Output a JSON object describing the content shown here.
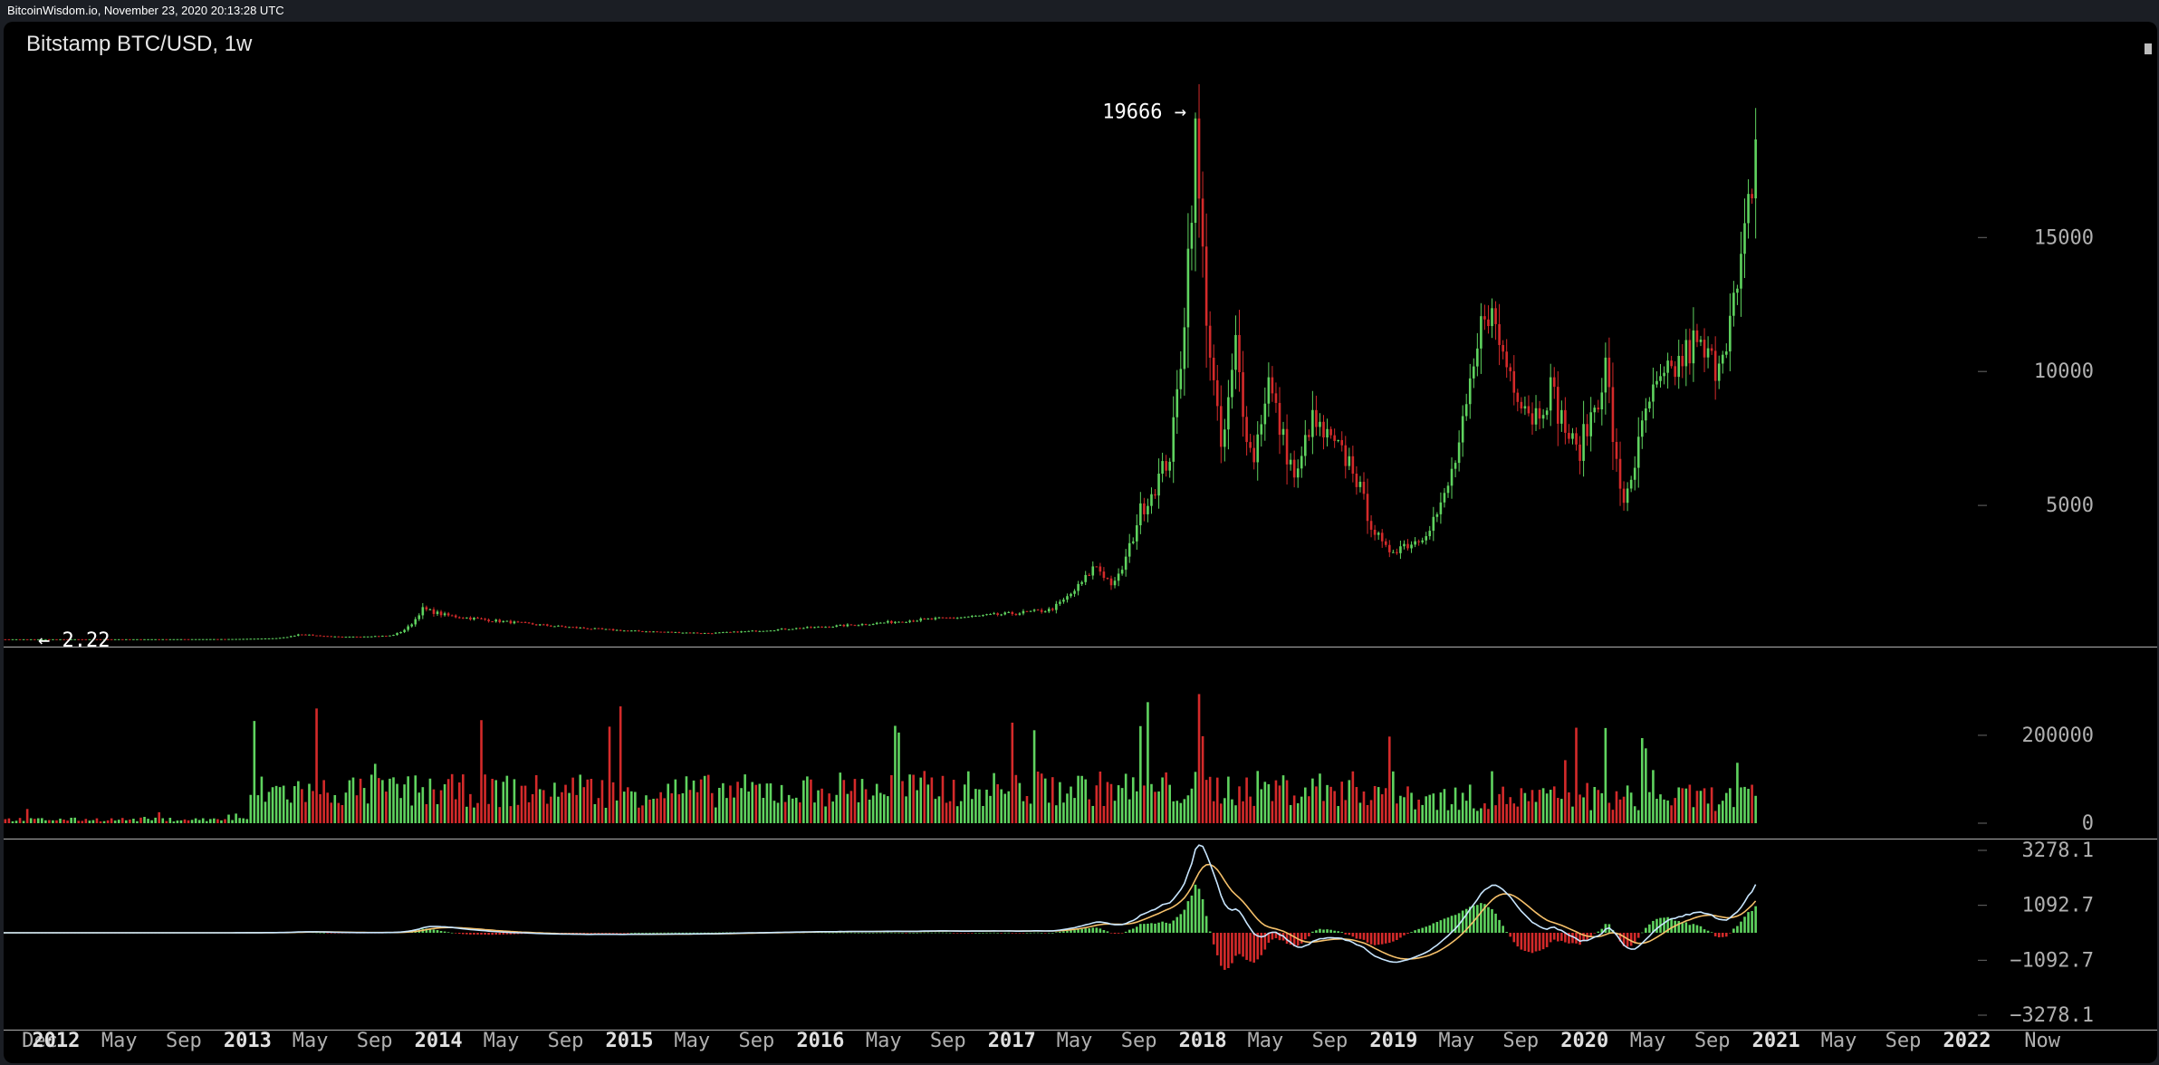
{
  "page": {
    "timestamp_line": "BitcoinWisdom.io, November 23, 2020 20:13:28 UTC"
  },
  "header": {
    "title": "Bitstamp BTC/USD, 1w"
  },
  "colors": {
    "up": "#5fd35f",
    "down": "#d42a2a",
    "macd_line": "#c8e6ff",
    "signal_line": "#f5c06a",
    "axis_text": "#b0b0b0",
    "divider": "#9a9a9a"
  },
  "chart_data": [
    {
      "type": "candlestick",
      "name": "price",
      "ylim": [
        0,
        21500
      ],
      "yticks": [
        "5000",
        "10000",
        "15000"
      ],
      "annotations": [
        {
          "label": "19666 →",
          "x": "2017-12-17",
          "y": 19666
        },
        {
          "label": "← 2.22",
          "x": "2011-09-01",
          "y": 2.22
        }
      ],
      "anchors": [
        [
          "2011-08-20",
          5
        ],
        [
          "2012-06-01",
          6
        ],
        [
          "2012-12-01",
          13
        ],
        [
          "2013-03-01",
          50
        ],
        [
          "2013-04-10",
          200
        ],
        [
          "2013-07-01",
          90
        ],
        [
          "2013-10-01",
          140
        ],
        [
          "2013-11-30",
          1150
        ],
        [
          "2014-01-15",
          900
        ],
        [
          "2014-06-01",
          620
        ],
        [
          "2014-12-31",
          320
        ],
        [
          "2015-06-01",
          230
        ],
        [
          "2015-11-05",
          400
        ],
        [
          "2016-06-15",
          700
        ],
        [
          "2016-12-31",
          960
        ],
        [
          "2017-03-15",
          1100
        ],
        [
          "2017-06-10",
          2800
        ],
        [
          "2017-07-15",
          2000
        ],
        [
          "2017-09-01",
          4700
        ],
        [
          "2017-11-01",
          7000
        ],
        [
          "2017-12-17",
          19000
        ],
        [
          "2018-02-06",
          7000
        ],
        [
          "2018-03-05",
          11000
        ],
        [
          "2018-04-06",
          6600
        ],
        [
          "2018-05-05",
          9800
        ],
        [
          "2018-06-29",
          5900
        ],
        [
          "2018-07-25",
          8200
        ],
        [
          "2018-10-15",
          6500
        ],
        [
          "2018-11-20",
          4300
        ],
        [
          "2018-12-15",
          3300
        ],
        [
          "2019-02-15",
          3700
        ],
        [
          "2019-04-01",
          4900
        ],
        [
          "2019-05-15",
          8000
        ],
        [
          "2019-06-26",
          12800
        ],
        [
          "2019-08-01",
          10500
        ],
        [
          "2019-09-25",
          8300
        ],
        [
          "2019-10-27",
          9400
        ],
        [
          "2019-12-18",
          6900
        ],
        [
          "2020-02-12",
          10300
        ],
        [
          "2020-03-12",
          5000
        ],
        [
          "2020-05-01",
          8800
        ],
        [
          "2020-06-01",
          9600
        ],
        [
          "2020-07-27",
          11000
        ],
        [
          "2020-09-05",
          10200
        ],
        [
          "2020-10-21",
          13000
        ],
        [
          "2020-11-23",
          18500
        ]
      ]
    },
    {
      "type": "bar",
      "name": "volume",
      "ylim": [
        0,
        340000
      ],
      "yticks": [
        "0",
        "200000"
      ]
    },
    {
      "type": "macd",
      "name": "macd",
      "ylim": [
        -3278.1,
        3278.1
      ],
      "yticks": [
        "3278.1",
        "1092.7",
        "−1092.7",
        "−3278.1"
      ]
    }
  ],
  "x_axis": {
    "labels": [
      {
        "text": "Dec",
        "date": "2011-12-01",
        "year": false
      },
      {
        "text": "2012",
        "date": "2012-01-01",
        "year": true
      },
      {
        "text": "May",
        "date": "2012-05-01",
        "year": false
      },
      {
        "text": "Sep",
        "date": "2012-09-01",
        "year": false
      },
      {
        "text": "2013",
        "date": "2013-01-01",
        "year": true
      },
      {
        "text": "May",
        "date": "2013-05-01",
        "year": false
      },
      {
        "text": "Sep",
        "date": "2013-09-01",
        "year": false
      },
      {
        "text": "2014",
        "date": "2014-01-01",
        "year": true
      },
      {
        "text": "May",
        "date": "2014-05-01",
        "year": false
      },
      {
        "text": "Sep",
        "date": "2014-09-01",
        "year": false
      },
      {
        "text": "2015",
        "date": "2015-01-01",
        "year": true
      },
      {
        "text": "May",
        "date": "2015-05-01",
        "year": false
      },
      {
        "text": "Sep",
        "date": "2015-09-01",
        "year": false
      },
      {
        "text": "2016",
        "date": "2016-01-01",
        "year": true
      },
      {
        "text": "May",
        "date": "2016-05-01",
        "year": false
      },
      {
        "text": "Sep",
        "date": "2016-09-01",
        "year": false
      },
      {
        "text": "2017",
        "date": "2017-01-01",
        "year": true
      },
      {
        "text": "May",
        "date": "2017-05-01",
        "year": false
      },
      {
        "text": "Sep",
        "date": "2017-09-01",
        "year": false
      },
      {
        "text": "2018",
        "date": "2018-01-01",
        "year": true
      },
      {
        "text": "May",
        "date": "2018-05-01",
        "year": false
      },
      {
        "text": "Sep",
        "date": "2018-09-01",
        "year": false
      },
      {
        "text": "2019",
        "date": "2019-01-01",
        "year": true
      },
      {
        "text": "May",
        "date": "2019-05-01",
        "year": false
      },
      {
        "text": "Sep",
        "date": "2019-09-01",
        "year": false
      },
      {
        "text": "2020",
        "date": "2020-01-01",
        "year": true
      },
      {
        "text": "May",
        "date": "2020-05-01",
        "year": false
      },
      {
        "text": "Sep",
        "date": "2020-09-01",
        "year": false
      },
      {
        "text": "2021",
        "date": "2021-01-01",
        "year": true
      },
      {
        "text": "May",
        "date": "2021-05-01",
        "year": false
      },
      {
        "text": "Sep",
        "date": "2021-09-01",
        "year": false
      },
      {
        "text": "2022",
        "date": "2022-01-01",
        "year": true
      },
      {
        "text": "Now",
        "date": "2022-05-25",
        "year": false
      }
    ]
  }
}
